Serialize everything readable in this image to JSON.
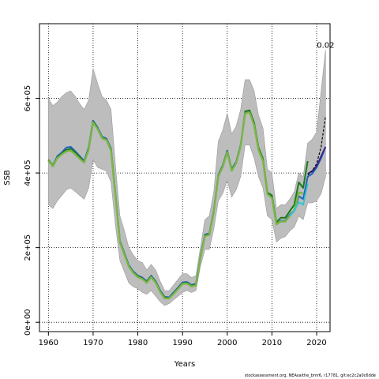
{
  "chart_data": {
    "type": "line",
    "title": "",
    "xlabel": "Years",
    "ylabel": "SSB",
    "xlim": [
      1958,
      2023
    ],
    "ylim": [
      -25000,
      800000
    ],
    "x_ticks": [
      1960,
      1970,
      1980,
      1990,
      2000,
      2010,
      2020
    ],
    "x_tick_labels": [
      "1960",
      "1970",
      "1980",
      "1990",
      "2000",
      "2010",
      "2020"
    ],
    "y_ticks": [
      0,
      200000,
      400000,
      600000
    ],
    "y_tick_labels": [
      "0e+00",
      "2e+05",
      "4e+05",
      "6e+05"
    ],
    "grid": true,
    "annotation": "0.02",
    "annotation_x": 2022,
    "annotation_y": 735000,
    "footer": "stockassessment.org, NEAsaithe_bmr6, r17781, git:ec2c2a0c6dde",
    "ci_band": {
      "x": [
        1960,
        1961,
        1962,
        1963,
        1964,
        1965,
        1966,
        1967,
        1968,
        1969,
        1970,
        1971,
        1972,
        1973,
        1974,
        1975,
        1976,
        1977,
        1978,
        1979,
        1980,
        1981,
        1982,
        1983,
        1984,
        1985,
        1986,
        1987,
        1988,
        1989,
        1990,
        1991,
        1992,
        1993,
        1994,
        1995,
        1996,
        1997,
        1998,
        1999,
        2000,
        2001,
        2002,
        2003,
        2004,
        2005,
        2006,
        2007,
        2008,
        2009,
        2010,
        2011,
        2012,
        2013,
        2014,
        2015,
        2016,
        2017,
        2018,
        2019,
        2020,
        2021,
        2022
      ],
      "upper": [
        600000,
        580000,
        590000,
        605000,
        615000,
        620000,
        605000,
        585000,
        570000,
        595000,
        680000,
        640000,
        605000,
        595000,
        570000,
        420000,
        285000,
        245000,
        200000,
        180000,
        165000,
        160000,
        140000,
        155000,
        140000,
        110000,
        85000,
        85000,
        100000,
        115000,
        130000,
        130000,
        120000,
        125000,
        200000,
        275000,
        285000,
        350000,
        485000,
        515000,
        560000,
        505000,
        525000,
        570000,
        650000,
        650000,
        620000,
        555000,
        520000,
        410000,
        400000,
        305000,
        315000,
        315000,
        330000,
        350000,
        400000,
        390000,
        480000,
        490000,
        510000,
        620000,
        730000
      ],
      "lower": [
        315000,
        305000,
        325000,
        340000,
        355000,
        360000,
        350000,
        340000,
        330000,
        360000,
        435000,
        415000,
        410000,
        405000,
        375000,
        260000,
        165000,
        135000,
        105000,
        95000,
        90000,
        80000,
        75000,
        85000,
        70000,
        55000,
        45000,
        50000,
        60000,
        70000,
        80000,
        85000,
        80000,
        85000,
        150000,
        195000,
        195000,
        250000,
        325000,
        345000,
        380000,
        335000,
        355000,
        390000,
        475000,
        475000,
        440000,
        390000,
        360000,
        285000,
        275000,
        215000,
        225000,
        230000,
        245000,
        255000,
        285000,
        275000,
        320000,
        320000,
        325000,
        345000,
        390000
      ]
    },
    "series": [
      {
        "name": "",
        "color": "#1f5fbf",
        "x": [
          1960,
          1961,
          1962,
          1963,
          1964,
          1965,
          1966,
          1967,
          1968,
          1969,
          1970,
          1971,
          1972,
          1973,
          1974,
          1975,
          1976,
          1977,
          1978,
          1979,
          1980,
          1981,
          1982,
          1983,
          1984,
          1985,
          1986,
          1987,
          1988,
          1989,
          1990,
          1991,
          1992,
          1993,
          1994,
          1995,
          1996,
          1997,
          1998,
          1999,
          2000,
          2001,
          2002,
          2003,
          2004,
          2005,
          2006,
          2007,
          2008,
          2009,
          2010,
          2011,
          2012,
          2013,
          2014,
          2015,
          2016,
          2017,
          2018,
          2019,
          2020,
          2021,
          2022
        ],
        "y": [
          435000,
          420000,
          445000,
          455000,
          468000,
          470000,
          458000,
          445000,
          432000,
          468000,
          540000,
          522000,
          497000,
          492000,
          465000,
          345000,
          218000,
          185000,
          153000,
          136000,
          125000,
          120000,
          110000,
          125000,
          110000,
          85000,
          68000,
          67000,
          80000,
          93000,
          107000,
          108000,
          100000,
          103000,
          175000,
          235000,
          238000,
          300000,
          395000,
          420000,
          460000,
          410000,
          430000,
          475000,
          560000,
          563000,
          530000,
          465000,
          435000,
          345000,
          335000,
          262000,
          272000,
          272000,
          288000,
          300000,
          338000,
          330000,
          390000,
          398000,
          415000,
          440000,
          470000
        ]
      },
      {
        "name": "",
        "color": "#1a7a1a",
        "x": [
          1960,
          1961,
          1962,
          1963,
          1964,
          1965,
          1966,
          1967,
          1968,
          1969,
          1970,
          1971,
          1972,
          1973,
          1974,
          1975,
          1976,
          1977,
          1978,
          1979,
          1980,
          1981,
          1982,
          1983,
          1984,
          1985,
          1986,
          1987,
          1988,
          1989,
          1990,
          1991,
          1992,
          1993,
          1994,
          1995,
          1996,
          1997,
          1998,
          1999,
          2000,
          2001,
          2002,
          2003,
          2004,
          2005,
          2006,
          2007,
          2008,
          2009,
          2010,
          2011,
          2012,
          2013,
          2014,
          2015,
          2016,
          2017,
          2018
        ],
        "y": [
          435000,
          420000,
          442000,
          452000,
          462000,
          465000,
          455000,
          442000,
          430000,
          465000,
          538000,
          520000,
          495000,
          490000,
          463000,
          343000,
          216000,
          183000,
          151000,
          134000,
          123000,
          118000,
          108000,
          123000,
          108000,
          83000,
          66000,
          65000,
          78000,
          91000,
          105000,
          106000,
          98000,
          101000,
          173000,
          233000,
          236000,
          298000,
          393000,
          418000,
          458000,
          408000,
          428000,
          473000,
          565000,
          568000,
          535000,
          468000,
          438000,
          348000,
          340000,
          268000,
          280000,
          280000,
          298000,
          315000,
          375000,
          360000,
          432000
        ]
      },
      {
        "name": "",
        "color": "#7ab648",
        "x": [
          1960,
          1961,
          1962,
          1963,
          1964,
          1965,
          1966,
          1967,
          1968,
          1969,
          1970,
          1971,
          1972,
          1973,
          1974,
          1975,
          1976,
          1977,
          1978,
          1979,
          1980,
          1981,
          1982,
          1983,
          1984,
          1985,
          1986,
          1987,
          1988,
          1989,
          1990,
          1991,
          1992,
          1993,
          1994,
          1995,
          1996,
          1997,
          1998,
          1999,
          2000,
          2001,
          2002,
          2003,
          2004,
          2005,
          2006,
          2007,
          2008,
          2009,
          2010,
          2011,
          2012,
          2013,
          2014,
          2015,
          2016,
          2017
        ],
        "y": [
          433000,
          418000,
          440000,
          450000,
          458000,
          460000,
          450000,
          438000,
          428000,
          462000,
          535000,
          518000,
          493000,
          488000,
          460000,
          340000,
          214000,
          181000,
          149000,
          132000,
          121000,
          116000,
          106000,
          121000,
          106000,
          81000,
          64000,
          64000,
          76000,
          89000,
          103000,
          104000,
          96000,
          99000,
          171000,
          231000,
          234000,
          296000,
          391000,
          416000,
          456000,
          406000,
          426000,
          471000,
          560000,
          562000,
          528000,
          462000,
          432000,
          343000,
          333000,
          262000,
          270000,
          270000,
          285000,
          300000,
          348000,
          345000
        ]
      },
      {
        "name": "",
        "color": "#33c4cc",
        "x": [
          2014,
          2015,
          2016,
          2017,
          2018
        ],
        "y": [
          285000,
          298000,
          322000,
          315000,
          372000
        ]
      },
      {
        "name": "",
        "color": "#3b2a8c",
        "x": [
          2018,
          2019,
          2020,
          2021,
          2022
        ],
        "y": [
          398000,
          405000,
          418000,
          445000,
          470000
        ]
      },
      {
        "name": "",
        "color": "#000000",
        "dashed": true,
        "x": [
          2018,
          2019,
          2020,
          2021,
          2022
        ],
        "y": [
          395000,
          405000,
          425000,
          470000,
          552000
        ]
      }
    ]
  }
}
